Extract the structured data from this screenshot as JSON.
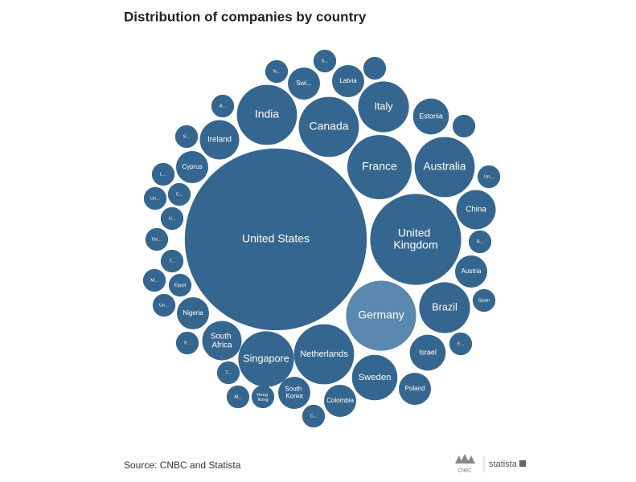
{
  "chart_data": {
    "type": "bubble",
    "title": "Distribution of companies by country",
    "source": "Source: CNBC and Statista",
    "categories": [
      "United States",
      "United Kingdom",
      "Germany",
      "France",
      "Australia",
      "Canada",
      "India",
      "Netherlands",
      "Singapore",
      "Italy",
      "Brazil",
      "Sweden",
      "South Africa",
      "China",
      "Israel",
      "Ireland",
      "Estonia",
      "Poland",
      "Colombia",
      "South Korea",
      "Nigeria",
      "Austria",
      "Cyprus",
      "Latvia",
      "Swi...",
      "Hong Kong",
      null,
      null,
      "Un...",
      "R...",
      "Spain",
      "E...",
      "C...",
      "Al...",
      "T...",
      "F...",
      "Un...",
      "M...",
      "Egypt",
      "T...",
      "Ge...",
      "U...",
      "C...",
      "Un...",
      "L...",
      "S...",
      "A...",
      "N...",
      "S..."
    ],
    "values": [
      128,
      32,
      19,
      16,
      14,
      14,
      14,
      14,
      12,
      10,
      10,
      8,
      6,
      6,
      5,
      6,
      5,
      4,
      4,
      4,
      4,
      4,
      4,
      4,
      4,
      2,
      2,
      2,
      2,
      2,
      2,
      2,
      2,
      2,
      2,
      2,
      2,
      2,
      2,
      2,
      2,
      2,
      2,
      2,
      2,
      2,
      2,
      2,
      2
    ],
    "color": "#35668f",
    "highlight_color": "#5b88ae",
    "highlight": "Germany"
  },
  "branding": {
    "cnbc": "CNBC",
    "statista": "statista"
  }
}
